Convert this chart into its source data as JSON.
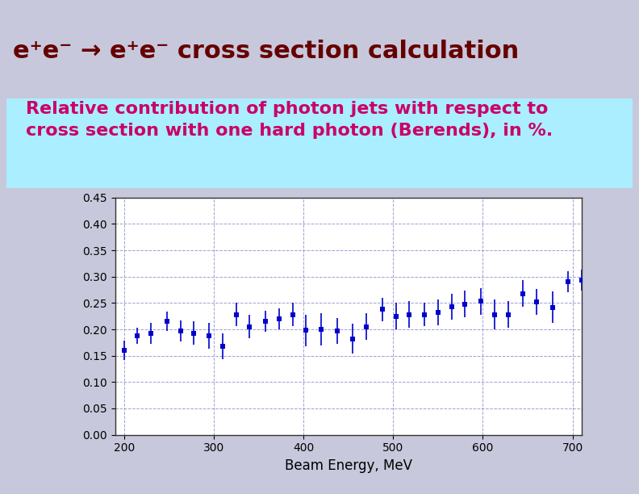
{
  "title_main": "e⁺e⁻ → e⁺e⁻ cross section calculation",
  "subtitle": "Relative contribution of photon jets with respect to\ncross section with one hard photon (Berends), in %.",
  "xlabel": "Beam Energy, MeV",
  "ylim": [
    0,
    0.45
  ],
  "xlim": [
    190,
    710
  ],
  "yticks": [
    0,
    0.05,
    0.1,
    0.15,
    0.2,
    0.25,
    0.3,
    0.35,
    0.4,
    0.45
  ],
  "xticks": [
    200,
    300,
    400,
    500,
    600,
    700
  ],
  "data_x": [
    200,
    215,
    230,
    248,
    263,
    278,
    295,
    310,
    325,
    340,
    358,
    373,
    388,
    403,
    420,
    438,
    455,
    470,
    488,
    503,
    518,
    535,
    550,
    565,
    580,
    598,
    613,
    628,
    645,
    660,
    678,
    695,
    710
  ],
  "data_y": [
    0.16,
    0.188,
    0.193,
    0.215,
    0.197,
    0.193,
    0.188,
    0.168,
    0.228,
    0.205,
    0.215,
    0.22,
    0.228,
    0.198,
    0.2,
    0.197,
    0.182,
    0.205,
    0.238,
    0.225,
    0.228,
    0.228,
    0.232,
    0.243,
    0.248,
    0.253,
    0.228,
    0.228,
    0.268,
    0.252,
    0.242,
    0.29,
    0.293
  ],
  "data_yerr": [
    0.018,
    0.015,
    0.02,
    0.018,
    0.02,
    0.022,
    0.025,
    0.025,
    0.022,
    0.022,
    0.02,
    0.02,
    0.022,
    0.03,
    0.03,
    0.025,
    0.028,
    0.025,
    0.022,
    0.025,
    0.025,
    0.022,
    0.025,
    0.025,
    0.025,
    0.025,
    0.028,
    0.025,
    0.025,
    0.025,
    0.03,
    0.02,
    0.02
  ],
  "point_color": "#0000CC",
  "bg_color_top": "#C8C8DC",
  "bg_color_subtitle": "#AAEEFF",
  "title_color": "#660000",
  "subtitle_color": "#CC0066",
  "grid_color": "#8888CC",
  "plot_bg": "#FFFFFF"
}
